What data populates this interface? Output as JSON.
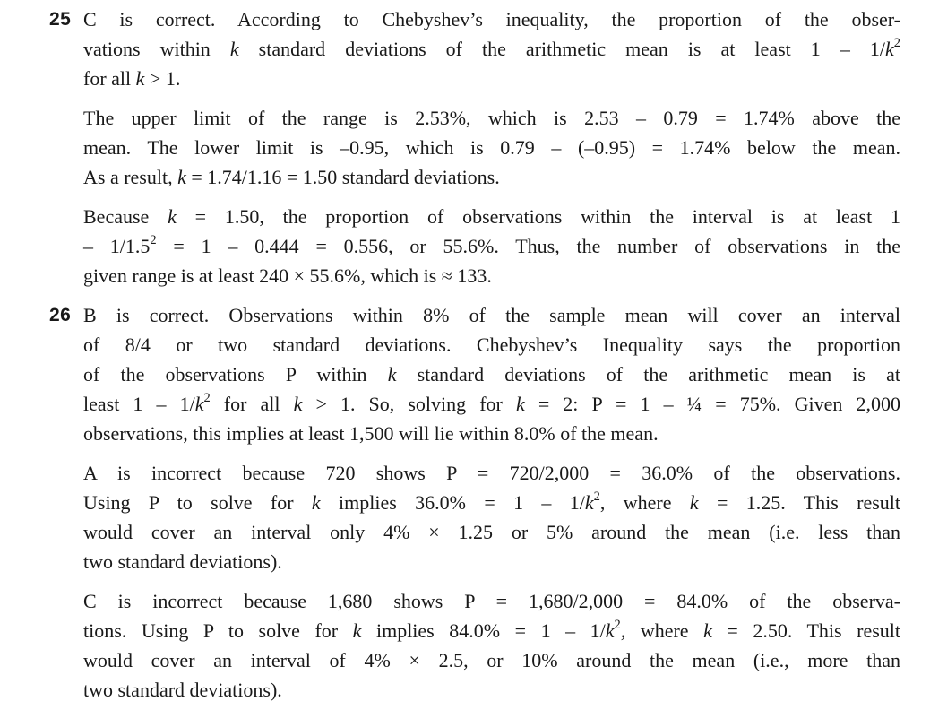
{
  "page": {
    "kind": "textbook-answer-page",
    "background_color": "#ffffff",
    "text_color": "#191919"
  },
  "items": [
    {
      "number": "25",
      "paragraphs": [
        {
          "lines": [
            "C is correct. According to Chebyshev’s inequality, the proportion of the obser-",
            "vations within *k* standard deviations of the arithmetic mean is at least 1 – 1/*k*^2^",
            "for all *k* > 1."
          ]
        },
        {
          "lines": [
            "The upper limit of the range is 2.53%, which is 2.53 – 0.79 = 1.74% above the",
            "mean. The lower limit is –0.95, which is 0.79 – (–0.95) = 1.74% below the mean.",
            "As a result, *k* = 1.74/1.16 = 1.50 standard deviations."
          ]
        },
        {
          "lines": [
            "Because *k* = 1.50, the proportion of observations within the interval is at least 1",
            "– 1/1.5^2^ = 1 – 0.444 = 0.556, or 55.6%. Thus, the number of observations in the",
            "given range is at least 240 × 55.6%, which is ≈ 133."
          ]
        }
      ]
    },
    {
      "number": "26",
      "paragraphs": [
        {
          "lines": [
            "B is correct. Observations within 8% of the sample mean will cover an interval",
            "of 8/4 or two standard deviations. Chebyshev’s Inequality says the proportion",
            "of the observations P within *k* standard deviations of the arithmetic mean is at",
            "least 1 – 1/*k*^2^ for all *k* > 1. So, solving for *k* = 2: P = 1 – ¼ = 75%. Given 2,000",
            "observations, this implies at least 1,500 will lie within 8.0% of the mean."
          ]
        },
        {
          "lines": [
            "A is incorrect because 720 shows P = 720/2,000 = 36.0% of the observations.",
            "Using P to solve for *k* implies 36.0% = 1 – 1/*k*^2^, where *k* = 1.25. This result",
            "would cover an interval only 4% × 1.25 or 5% around the mean (i.e. less than",
            "two standard deviations)."
          ]
        },
        {
          "lines": [
            "C is incorrect because 1,680 shows P = 1,680/2,000 = 84.0% of the observa-",
            "tions. Using P to solve for *k* implies 84.0% = 1 – 1/*k*^2^, where *k* = 2.50. This result",
            "would cover an interval of 4% × 2.5, or 10% around the mean (i.e., more than",
            "two standard deviations)."
          ]
        }
      ]
    }
  ]
}
